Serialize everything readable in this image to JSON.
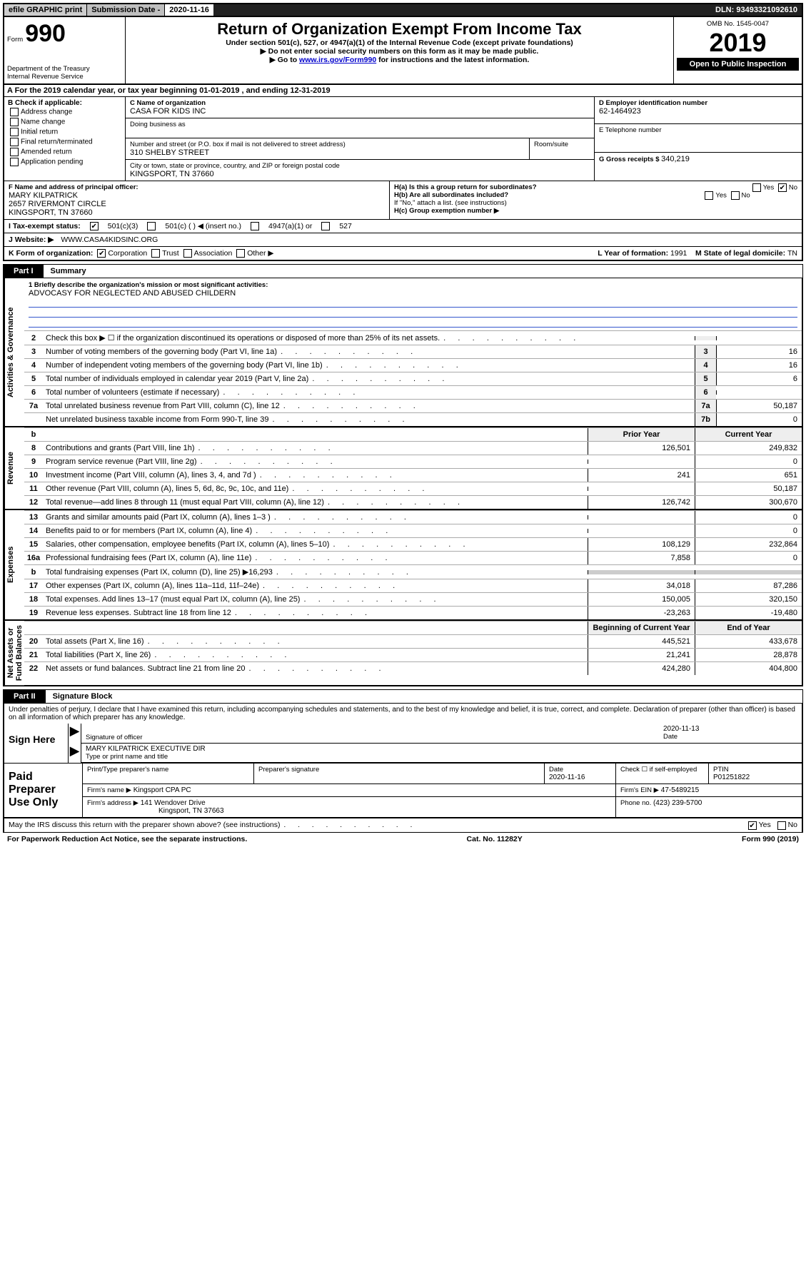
{
  "colors": {
    "text": "#000000",
    "bg": "#ffffff",
    "header_gray": "#cccccc",
    "header_gray2": "#bfbfbf",
    "dark": "#222222",
    "link": "#0000cc",
    "blueline": "#3355cc",
    "key_bg": "#eeeeee",
    "border_light": "#aaaaaa"
  },
  "header": {
    "efile": "efile GRAPHIC print",
    "sub_label": "Submission Date - ",
    "sub_value": "2020-11-16",
    "dln_label": "DLN: ",
    "dln_value": "93493321092610"
  },
  "formTop": {
    "form_word": "Form",
    "form_num": "990",
    "dept": "Department of the Treasury",
    "irs": "Internal Revenue Service",
    "title": "Return of Organization Exempt From Income Tax",
    "sub1": "Under section 501(c), 527, or 4947(a)(1) of the Internal Revenue Code (except private foundations)",
    "sub2_pre": "▶ Do not enter social security numbers on this form as it may be made public.",
    "sub3_pre": "▶ Go to ",
    "sub3_link": "www.irs.gov/Form990",
    "sub3_post": " for instructions and the latest information.",
    "omb": "OMB No. 1545-0047",
    "year": "2019",
    "otp": "Open to Public Inspection"
  },
  "rowA": "A  For the 2019 calendar year, or tax year beginning 01-01-2019    , and ending 12-31-2019",
  "boxB": {
    "label": "B Check if applicable:",
    "items": [
      "Address change",
      "Name change",
      "Initial return",
      "Final return/terminated",
      "Amended return",
      "Application pending"
    ]
  },
  "boxC": {
    "label": "C Name of organization",
    "name": "CASA FOR KIDS INC",
    "dba_label": "Doing business as",
    "addr_label": "Number and street (or P.O. box if mail is not delivered to street address)",
    "room_label": "Room/suite",
    "addr": "310 SHELBY STREET",
    "city_label": "City or town, state or province, country, and ZIP or foreign postal code",
    "city": "KINGSPORT, TN  37660"
  },
  "boxD": {
    "label": "D Employer identification number",
    "value": "62-1464923"
  },
  "boxE": {
    "label": "E Telephone number"
  },
  "boxG": {
    "label": "G Gross receipts $ ",
    "value": "340,219"
  },
  "boxF": {
    "label": "F  Name and address of principal officer:",
    "name": "MARY KILPATRICK",
    "addr": "2657 RIVERMONT CIRCLE",
    "city": "KINGSPORT, TN  37660"
  },
  "boxH": {
    "a_label": "H(a)  Is this a group return for subordinates?",
    "a_yes": "Yes",
    "a_no": "No",
    "b_label": "H(b)  Are all subordinates included?",
    "b_note": "If \"No,\" attach a list. (see instructions)",
    "c_label": "H(c)  Group exemption number ▶"
  },
  "status": {
    "label": "I   Tax-exempt status:",
    "c3": "501(c)(3)",
    "c_other": "501(c) (   ) ◀ (insert no.)",
    "c4947": "4947(a)(1) or",
    "c527": "527"
  },
  "website": {
    "label": "J   Website: ▶",
    "value": "WWW.CASA4KIDSINC.ORG"
  },
  "korg": {
    "label": "K Form of organization:",
    "opts": [
      "Corporation",
      "Trust",
      "Association",
      "Other ▶"
    ],
    "L_label": "L Year of formation: ",
    "L_val": "1991",
    "M_label": "M State of legal domicile: ",
    "M_val": "TN"
  },
  "part1": {
    "tab": "Part I",
    "title": "Summary"
  },
  "mission": {
    "label": "1  Briefly describe the organization's mission or most significant activities:",
    "text": "ADVOCASY FOR NEGLECTED AND ABUSED CHILDERN"
  },
  "govLines": [
    {
      "n": "2",
      "d": "Check this box ▶ ☐  if the organization discontinued its operations or disposed of more than 25% of its net assets.",
      "k": "",
      "v": ""
    },
    {
      "n": "3",
      "d": "Number of voting members of the governing body (Part VI, line 1a)",
      "k": "3",
      "v": "16"
    },
    {
      "n": "4",
      "d": "Number of independent voting members of the governing body (Part VI, line 1b)",
      "k": "4",
      "v": "16"
    },
    {
      "n": "5",
      "d": "Total number of individuals employed in calendar year 2019 (Part V, line 2a)",
      "k": "5",
      "v": "6"
    },
    {
      "n": "6",
      "d": "Total number of volunteers (estimate if necessary)",
      "k": "6",
      "v": ""
    },
    {
      "n": "7a",
      "d": "Total unrelated business revenue from Part VIII, column (C), line 12",
      "k": "7a",
      "v": "50,187"
    },
    {
      "n": "",
      "d": "Net unrelated business taxable income from Form 990-T, line 39",
      "k": "7b",
      "v": "0"
    }
  ],
  "twoColHdr": {
    "b": "b",
    "py": "Prior Year",
    "cy": "Current Year"
  },
  "revLines": [
    {
      "n": "8",
      "d": "Contributions and grants (Part VIII, line 1h)",
      "c1": "126,501",
      "c2": "249,832"
    },
    {
      "n": "9",
      "d": "Program service revenue (Part VIII, line 2g)",
      "c1": "",
      "c2": "0"
    },
    {
      "n": "10",
      "d": "Investment income (Part VIII, column (A), lines 3, 4, and 7d )",
      "c1": "241",
      "c2": "651"
    },
    {
      "n": "11",
      "d": "Other revenue (Part VIII, column (A), lines 5, 6d, 8c, 9c, 10c, and 11e)",
      "c1": "",
      "c2": "50,187"
    },
    {
      "n": "12",
      "d": "Total revenue—add lines 8 through 11 (must equal Part VIII, column (A), line 12)",
      "c1": "126,742",
      "c2": "300,670"
    }
  ],
  "expLines": [
    {
      "n": "13",
      "d": "Grants and similar amounts paid (Part IX, column (A), lines 1–3 )",
      "c1": "",
      "c2": "0"
    },
    {
      "n": "14",
      "d": "Benefits paid to or for members (Part IX, column (A), line 4)",
      "c1": "",
      "c2": "0"
    },
    {
      "n": "15",
      "d": "Salaries, other compensation, employee benefits (Part IX, column (A), lines 5–10)",
      "c1": "108,129",
      "c2": "232,864"
    },
    {
      "n": "16a",
      "d": "Professional fundraising fees (Part IX, column (A), line 11e)",
      "c1": "7,858",
      "c2": "0"
    },
    {
      "n": "b",
      "d": "Total fundraising expenses (Part IX, column (D), line 25) ▶16,293",
      "c1": "—shade—",
      "c2": "—shade—"
    },
    {
      "n": "17",
      "d": "Other expenses (Part IX, column (A), lines 11a–11d, 11f–24e)",
      "c1": "34,018",
      "c2": "87,286"
    },
    {
      "n": "18",
      "d": "Total expenses. Add lines 13–17 (must equal Part IX, column (A), line 25)",
      "c1": "150,005",
      "c2": "320,150"
    },
    {
      "n": "19",
      "d": "Revenue less expenses. Subtract line 18 from line 12",
      "c1": "-23,263",
      "c2": "-19,480"
    }
  ],
  "naHdr": {
    "py": "Beginning of Current Year",
    "cy": "End of Year"
  },
  "naLines": [
    {
      "n": "20",
      "d": "Total assets (Part X, line 16)",
      "c1": "445,521",
      "c2": "433,678"
    },
    {
      "n": "21",
      "d": "Total liabilities (Part X, line 26)",
      "c1": "21,241",
      "c2": "28,878"
    },
    {
      "n": "22",
      "d": "Net assets or fund balances. Subtract line 21 from line 20",
      "c1": "424,280",
      "c2": "404,800"
    }
  ],
  "vlabels": {
    "gov": "Activities & Governance",
    "rev": "Revenue",
    "exp": "Expenses",
    "na": "Net Assets or\nFund Balances"
  },
  "part2": {
    "tab": "Part II",
    "title": "Signature Block"
  },
  "perjury": "Under penalties of perjury, I declare that I have examined this return, including accompanying schedules and statements, and to the best of my knowledge and belief, it is true, correct, and complete. Declaration of preparer (other than officer) is based on all information of which preparer has any knowledge.",
  "sign": {
    "here": "Sign Here",
    "sig_label": "Signature of officer",
    "date": "2020-11-13",
    "date_label": "Date",
    "name": "MARY KILPATRICK  EXECUTIVE DIR",
    "name_label": "Type or print name and title"
  },
  "prep": {
    "label": "Paid Preparer Use Only",
    "h1": "Print/Type preparer's name",
    "h2": "Preparer's signature",
    "h3": "Date",
    "h3v": "2020-11-16",
    "h4": "Check ☐ if self-employed",
    "h5": "PTIN",
    "h5v": "P01251822",
    "firm_label": "Firm's name   ▶",
    "firm": "Kingsport CPA PC",
    "ein_label": "Firm's EIN ▶",
    "ein": "47-5489215",
    "addr_label": "Firm's address ▶",
    "addr1": "141 Wendover Drive",
    "addr2": "Kingsport, TN  37663",
    "phone_label": "Phone no. ",
    "phone": "(423) 239-5700"
  },
  "discuss": {
    "q": "May the IRS discuss this return with the preparer shown above? (see instructions)",
    "yes": "Yes",
    "no": "No"
  },
  "foot": {
    "pra": "For Paperwork Reduction Act Notice, see the separate instructions.",
    "cat": "Cat. No. 11282Y",
    "form": "Form 990 (2019)"
  }
}
